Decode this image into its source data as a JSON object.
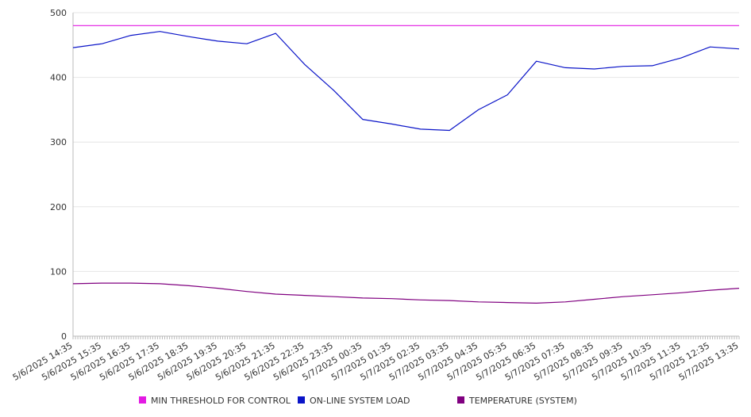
{
  "chart_data": {
    "type": "line",
    "title": "",
    "xlabel": "",
    "ylabel": "",
    "ylim": [
      0,
      500
    ],
    "yticks": [
      0,
      100,
      200,
      300,
      400,
      500
    ],
    "grid": "horizontal",
    "legend_position": "bottom",
    "x": [
      "5/6/2025 14:35",
      "5/6/2025 15:35",
      "5/6/2025 16:35",
      "5/6/2025 17:35",
      "5/6/2025 18:35",
      "5/6/2025 19:35",
      "5/6/2025 20:35",
      "5/6/2025 21:35",
      "5/6/2025 22:35",
      "5/6/2025 23:35",
      "5/7/2025 00:35",
      "5/7/2025 01:35",
      "5/7/2025 02:35",
      "5/7/2025 03:35",
      "5/7/2025 04:35",
      "5/7/2025 05:35",
      "5/7/2025 06:35",
      "5/7/2025 07:35",
      "5/7/2025 08:35",
      "5/7/2025 09:35",
      "5/7/2025 10:35",
      "5/7/2025 11:35",
      "5/7/2025 12:35",
      "5/7/2025 13:35"
    ],
    "series": [
      {
        "name": "MIN THRESHOLD FOR CONTROL",
        "color": "#e31ae3",
        "values": [
          480,
          480,
          480,
          480,
          480,
          480,
          480,
          480,
          480,
          480,
          480,
          480,
          480,
          480,
          480,
          480,
          480,
          480,
          480,
          480,
          480,
          480,
          480,
          480
        ]
      },
      {
        "name": "ON-LINE SYSTEM LOAD",
        "color": "#0a14c8",
        "values": [
          446,
          452,
          465,
          471,
          463,
          456,
          452,
          468,
          420,
          380,
          335,
          328,
          320,
          318,
          350,
          373,
          425,
          415,
          413,
          417,
          418,
          430,
          447,
          444
        ]
      },
      {
        "name": "TEMPERATURE (SYSTEM)",
        "color": "#800080",
        "values": [
          81,
          82,
          82,
          81,
          78,
          74,
          69,
          65,
          63,
          61,
          59,
          58,
          56,
          55,
          53,
          52,
          51,
          53,
          57,
          61,
          64,
          67,
          71,
          74
        ]
      }
    ]
  }
}
